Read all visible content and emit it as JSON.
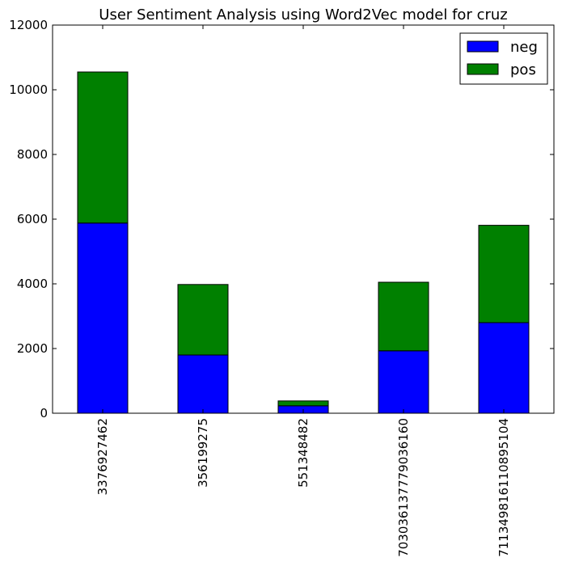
{
  "chart_data": {
    "type": "bar",
    "stacked": true,
    "title": "User Sentiment Analysis using Word2Vec model for cruz",
    "xlabel": "",
    "ylabel": "",
    "categories": [
      "3376927462",
      "356199275",
      "551348482",
      "703036137779036160",
      "711349816110895104"
    ],
    "series": [
      {
        "name": "neg",
        "color": "#0000ff",
        "values": [
          5880,
          1800,
          230,
          1930,
          2800
        ]
      },
      {
        "name": "pos",
        "color": "#008000",
        "values": [
          4670,
          2180,
          150,
          2120,
          3010
        ]
      }
    ],
    "ylim": [
      0,
      12000
    ],
    "yticks": [
      0,
      2000,
      4000,
      6000,
      8000,
      10000,
      12000
    ],
    "grid": false,
    "legend_position": "top-right"
  }
}
